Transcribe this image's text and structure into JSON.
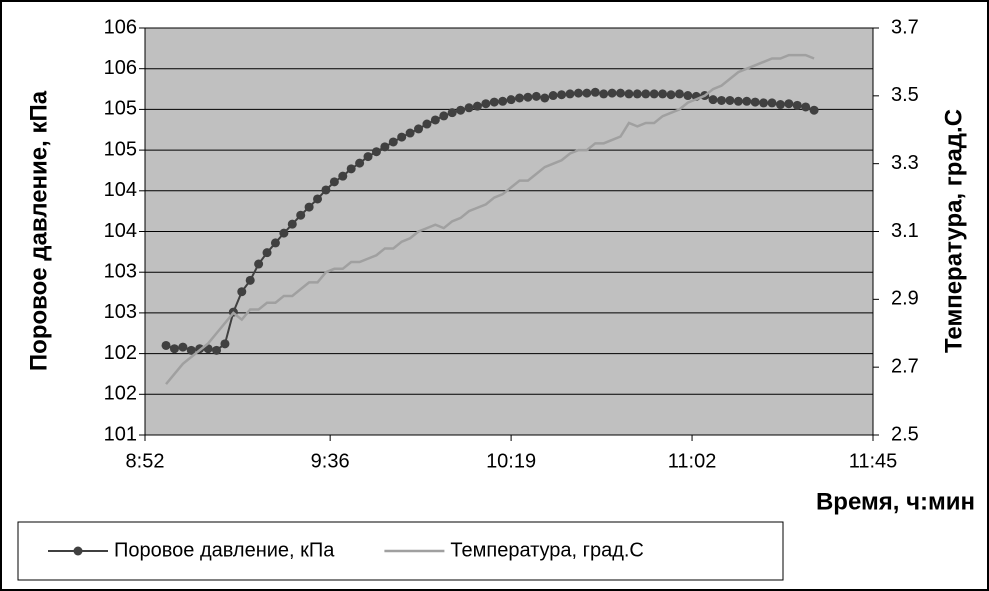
{
  "chart_data": {
    "type": "line",
    "y_label": "Поровое давление, кПа",
    "y2_label": "Температура, град.С",
    "x_label": "Время, ч:мин",
    "x": [
      537,
      539,
      541,
      543,
      545,
      547,
      549,
      551,
      553,
      555,
      557,
      559,
      561,
      563,
      565,
      567,
      569,
      571,
      573,
      575,
      577,
      579,
      581,
      583,
      585,
      587,
      589,
      591,
      593,
      595,
      597,
      599,
      601,
      603,
      605,
      607,
      609,
      611,
      613,
      615,
      617,
      619,
      621,
      623,
      625,
      627,
      629,
      631,
      633,
      635,
      637,
      639,
      641,
      643,
      645,
      647,
      649,
      651,
      653,
      655,
      657,
      659,
      661,
      663,
      665,
      667,
      669,
      671,
      673,
      675,
      677,
      679,
      681,
      683,
      685,
      687,
      689,
      691
    ],
    "series": [
      {
        "name": "Поровое давление, кПа",
        "color": "#404040",
        "marker": true,
        "values": [
          102.1,
          102.06,
          102.08,
          102.04,
          102.06,
          102.06,
          102.04,
          102.12,
          102.51,
          102.76,
          102.9,
          103.1,
          103.24,
          103.36,
          103.48,
          103.59,
          103.7,
          103.8,
          103.9,
          104.01,
          104.11,
          104.18,
          104.27,
          104.34,
          104.42,
          104.48,
          104.54,
          104.6,
          104.66,
          104.71,
          104.76,
          104.82,
          104.87,
          104.92,
          104.96,
          104.99,
          105.02,
          105.04,
          105.07,
          105.09,
          105.1,
          105.12,
          105.14,
          105.15,
          105.16,
          105.14,
          105.17,
          105.18,
          105.19,
          105.2,
          105.2,
          105.21,
          105.19,
          105.2,
          105.2,
          105.19,
          105.19,
          105.19,
          105.19,
          105.19,
          105.18,
          105.19,
          105.17,
          105.16,
          105.17,
          105.12,
          105.11,
          105.11,
          105.1,
          105.1,
          105.09,
          105.08,
          105.08,
          105.06,
          105.07,
          105.05,
          105.03,
          104.99
        ]
      },
      {
        "name": "Температура, град.С",
        "color": "#a0a0a0",
        "marker": false,
        "axis": "y2",
        "values": [
          2.65,
          2.68,
          2.71,
          2.73,
          2.75,
          2.77,
          2.8,
          2.83,
          2.86,
          2.84,
          2.87,
          2.87,
          2.89,
          2.89,
          2.91,
          2.91,
          2.93,
          2.95,
          2.95,
          2.98,
          2.99,
          2.99,
          3.01,
          3.01,
          3.02,
          3.03,
          3.05,
          3.05,
          3.07,
          3.08,
          3.1,
          3.11,
          3.12,
          3.11,
          3.13,
          3.14,
          3.16,
          3.17,
          3.18,
          3.2,
          3.21,
          3.23,
          3.25,
          3.25,
          3.27,
          3.29,
          3.3,
          3.31,
          3.33,
          3.34,
          3.34,
          3.36,
          3.36,
          3.37,
          3.38,
          3.42,
          3.41,
          3.42,
          3.42,
          3.44,
          3.45,
          3.46,
          3.48,
          3.49,
          3.5,
          3.52,
          3.53,
          3.55,
          3.57,
          3.58,
          3.59,
          3.6,
          3.61,
          3.61,
          3.62,
          3.62,
          3.62,
          3.61
        ]
      }
    ],
    "xlim": [
      532,
      705
    ],
    "xticks": [
      {
        "value": 532,
        "label": "8:52"
      },
      {
        "value": 576,
        "label": "9:36"
      },
      {
        "value": 619,
        "label": "10:19"
      },
      {
        "value": 662,
        "label": "11:02"
      },
      {
        "value": 705,
        "label": "11:45"
      }
    ],
    "ylim": [
      101,
      106
    ],
    "yticks": [
      101,
      {
        "value": 101.5,
        "label": "102"
      },
      102,
      {
        "value": 102.5,
        "label": "103"
      },
      103,
      {
        "value": 103.5,
        "label": "104"
      },
      104,
      {
        "value": 104.5,
        "label": "105"
      },
      105,
      {
        "value": 105.5,
        "label": "106"
      },
      106
    ],
    "y2lim": [
      2.5,
      3.7
    ],
    "y2ticks": [
      2.5,
      2.7,
      2.9,
      3.1,
      3.3,
      3.5,
      3.7
    ],
    "grid": true,
    "legend": "bottom"
  }
}
